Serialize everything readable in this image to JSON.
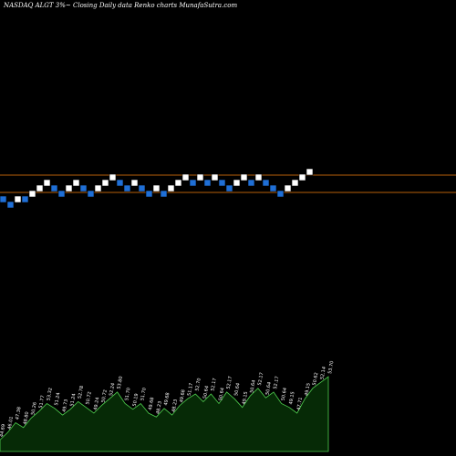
{
  "title": "NASDAQ ALGT 3%~  Closing Daily data  Renko  charts MunafaSutra.com",
  "colors": {
    "background": "#000000",
    "up_brick": "#ffffff",
    "down_brick": "#1f6fd6",
    "reference_line": "#b8600a",
    "price_area_fill": "#062a06",
    "price_area_stroke": "#4fd04f",
    "label_text": "#ffffff"
  },
  "chart_data": [
    {
      "type": "renko",
      "bricks": [
        {
          "dir": "down",
          "level": 0
        },
        {
          "dir": "down",
          "level": -1
        },
        {
          "dir": "up",
          "level": 0
        },
        {
          "dir": "down",
          "level": 0
        },
        {
          "dir": "up",
          "level": 1
        },
        {
          "dir": "up",
          "level": 2
        },
        {
          "dir": "up",
          "level": 3
        },
        {
          "dir": "down",
          "level": 2
        },
        {
          "dir": "down",
          "level": 1
        },
        {
          "dir": "up",
          "level": 2
        },
        {
          "dir": "up",
          "level": 3
        },
        {
          "dir": "down",
          "level": 2
        },
        {
          "dir": "down",
          "level": 1
        },
        {
          "dir": "up",
          "level": 2
        },
        {
          "dir": "up",
          "level": 3
        },
        {
          "dir": "up",
          "level": 4
        },
        {
          "dir": "down",
          "level": 3
        },
        {
          "dir": "down",
          "level": 2
        },
        {
          "dir": "up",
          "level": 3
        },
        {
          "dir": "down",
          "level": 2
        },
        {
          "dir": "down",
          "level": 1
        },
        {
          "dir": "up",
          "level": 2
        },
        {
          "dir": "down",
          "level": 1
        },
        {
          "dir": "up",
          "level": 2
        },
        {
          "dir": "up",
          "level": 3
        },
        {
          "dir": "up",
          "level": 4
        },
        {
          "dir": "down",
          "level": 3
        },
        {
          "dir": "up",
          "level": 4
        },
        {
          "dir": "down",
          "level": 3
        },
        {
          "dir": "up",
          "level": 4
        },
        {
          "dir": "down",
          "level": 3
        },
        {
          "dir": "down",
          "level": 2
        },
        {
          "dir": "up",
          "level": 3
        },
        {
          "dir": "up",
          "level": 4
        },
        {
          "dir": "down",
          "level": 3
        },
        {
          "dir": "up",
          "level": 4
        },
        {
          "dir": "down",
          "level": 3
        },
        {
          "dir": "down",
          "level": 2
        },
        {
          "dir": "down",
          "level": 1
        },
        {
          "dir": "up",
          "level": 2
        },
        {
          "dir": "up",
          "level": 3
        },
        {
          "dir": "up",
          "level": 4
        },
        {
          "dir": "up",
          "level": 5
        }
      ]
    },
    {
      "type": "area",
      "values": [
        0.12,
        0.2,
        0.3,
        0.25,
        0.35,
        0.42,
        0.5,
        0.45,
        0.38,
        0.44,
        0.52,
        0.46,
        0.4,
        0.48,
        0.55,
        0.62,
        0.5,
        0.44,
        0.5,
        0.4,
        0.36,
        0.45,
        0.38,
        0.48,
        0.55,
        0.6,
        0.52,
        0.6,
        0.5,
        0.62,
        0.55,
        0.46,
        0.58,
        0.66,
        0.56,
        0.62,
        0.5,
        0.46,
        0.4,
        0.55,
        0.66,
        0.72,
        0.78
      ],
      "brick_labels": [
        "44.69",
        "46.01",
        "47.38",
        "48.80",
        "50.26",
        "51.77",
        "53.32",
        "51.24",
        "49.73",
        "51.24",
        "52.78",
        "50.72",
        "49.24",
        "50.72",
        "52.24",
        "53.80",
        "51.70",
        "50.19",
        "51.70",
        "49.68",
        "48.23",
        "49.68",
        "48.23",
        "49.68",
        "51.17",
        "52.70",
        "50.64",
        "52.17",
        "50.64",
        "52.17",
        "50.64",
        "49.15",
        "50.64",
        "52.17",
        "50.64",
        "52.17",
        "50.64",
        "49.15",
        "47.71",
        "49.15",
        "50.62",
        "52.14",
        "53.70"
      ]
    }
  ]
}
